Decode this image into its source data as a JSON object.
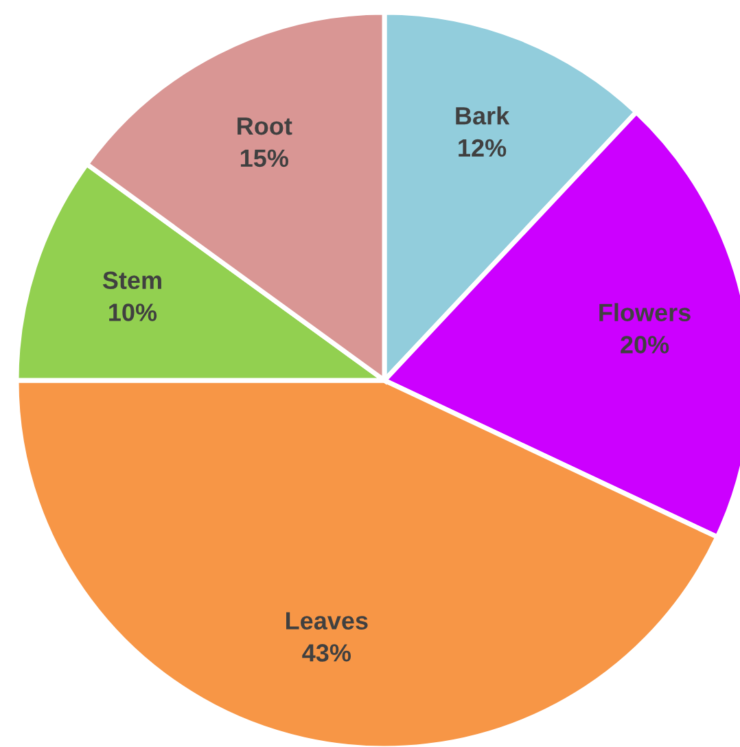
{
  "chart_data": {
    "type": "pie",
    "categories": [
      "Bark",
      "Flowers",
      "Leaves",
      "Stem",
      "Root"
    ],
    "values": [
      12,
      20,
      43,
      10,
      15
    ],
    "value_labels": [
      "12%",
      "20%",
      "43%",
      "10%",
      "15%"
    ],
    "colors": [
      "#92cddc",
      "#cc00ff",
      "#f79646",
      "#92d050",
      "#d99694"
    ]
  }
}
